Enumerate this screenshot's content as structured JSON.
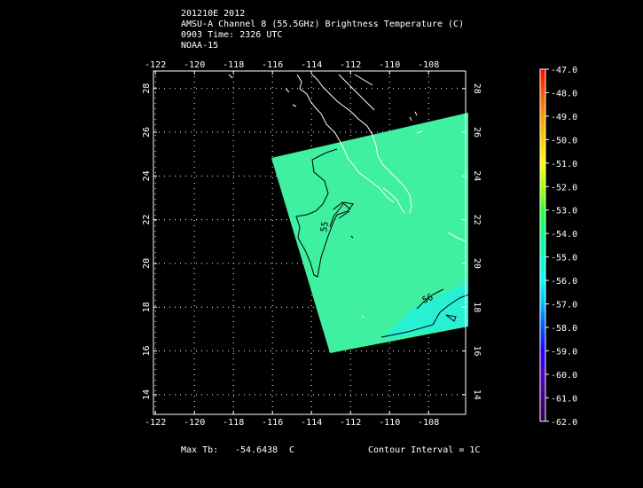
{
  "header": {
    "line1": "201210E 2012",
    "line2": "AMSU-A Channel 8 (55.5GHz) Brightness Temperature (C)",
    "line3": "0903 Time: 2326 UTC",
    "line4": "NOAA-15"
  },
  "map": {
    "lon_ticks": [
      "-122",
      "-120",
      "-118",
      "-116",
      "-114",
      "-112",
      "-110",
      "-108"
    ],
    "lat_ticks": [
      "28",
      "26",
      "24",
      "22",
      "20",
      "18",
      "16",
      "14"
    ],
    "lon_range": [
      -122.1,
      -106.1
    ],
    "lat_range": [
      13.1,
      28.8
    ],
    "grid": true,
    "contour_labels": [
      "55",
      "56"
    ],
    "background_color": "#000000",
    "grid_color": "#ffffff",
    "coast_color": "#ffffff",
    "swath_color_main": "#3ef0a0",
    "swath_color_cold": "#22f2e4"
  },
  "colorbar": {
    "labels": [
      "-47.0",
      "-48.0",
      "-49.0",
      "-50.0",
      "-51.0",
      "-52.0",
      "-53.0",
      "-54.0",
      "-55.0",
      "-56.0",
      "-57.0",
      "-58.0",
      "-59.0",
      "-60.0",
      "-61.0",
      "-62.0"
    ],
    "colors": [
      "#ff0000",
      "#ff5500",
      "#ff9900",
      "#ffcc00",
      "#ffff00",
      "#aaff00",
      "#33ff33",
      "#00ff88",
      "#00ffcc",
      "#00ffff",
      "#00bbff",
      "#0055ff",
      "#2200ff",
      "#5500cc",
      "#440088",
      "#330044"
    ]
  },
  "footer": {
    "max_label": "Max Tb:",
    "max_value": "-54.6438",
    "max_unit": "C",
    "contour_interval": "Contour Interval = 1C"
  }
}
